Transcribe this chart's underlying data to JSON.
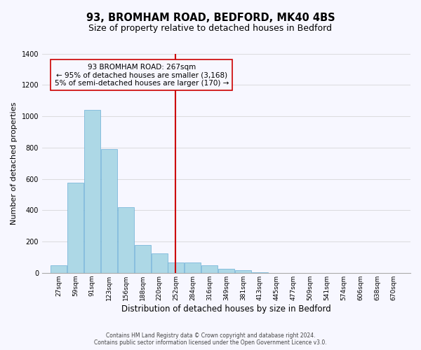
{
  "title": "93, BROMHAM ROAD, BEDFORD, MK40 4BS",
  "subtitle": "Size of property relative to detached houses in Bedford",
  "xlabel": "Distribution of detached houses by size in Bedford",
  "ylabel": "Number of detached properties",
  "bar_values": [
    50,
    575,
    1040,
    790,
    420,
    180,
    125,
    65,
    65,
    50,
    25,
    15,
    5,
    0,
    0,
    0,
    0,
    0,
    0,
    0,
    0
  ],
  "bin_labels": [
    "27sqm",
    "59sqm",
    "91sqm",
    "123sqm",
    "156sqm",
    "188sqm",
    "220sqm",
    "252sqm",
    "284sqm",
    "316sqm",
    "349sqm",
    "381sqm",
    "413sqm",
    "445sqm",
    "477sqm",
    "509sqm",
    "541sqm",
    "574sqm",
    "606sqm",
    "638sqm",
    "670sqm"
  ],
  "bin_edges": [
    27,
    59,
    91,
    123,
    156,
    188,
    220,
    252,
    284,
    316,
    349,
    381,
    413,
    445,
    477,
    509,
    541,
    574,
    606,
    638,
    670
  ],
  "bin_width": 32,
  "bar_color": "#add8e6",
  "bar_edge_color": "#6baed6",
  "vline_x": 267,
  "vline_color": "#cc0000",
  "ylim": [
    0,
    1400
  ],
  "yticks": [
    0,
    200,
    400,
    600,
    800,
    1000,
    1200,
    1400
  ],
  "annotation_title": "93 BROMHAM ROAD: 267sqm",
  "annotation_line1": "← 95% of detached houses are smaller (3,168)",
  "annotation_line2": "5% of semi-detached houses are larger (170) →",
  "footer1": "Contains HM Land Registry data © Crown copyright and database right 2024.",
  "footer2": "Contains public sector information licensed under the Open Government Licence v3.0.",
  "background_color": "#f7f7ff",
  "title_fontsize": 10.5,
  "subtitle_fontsize": 9,
  "ylabel_fontsize": 8,
  "xlabel_fontsize": 8.5,
  "tick_fontsize": 6.5,
  "annotation_fontsize": 7.5,
  "footer_fontsize": 5.5
}
